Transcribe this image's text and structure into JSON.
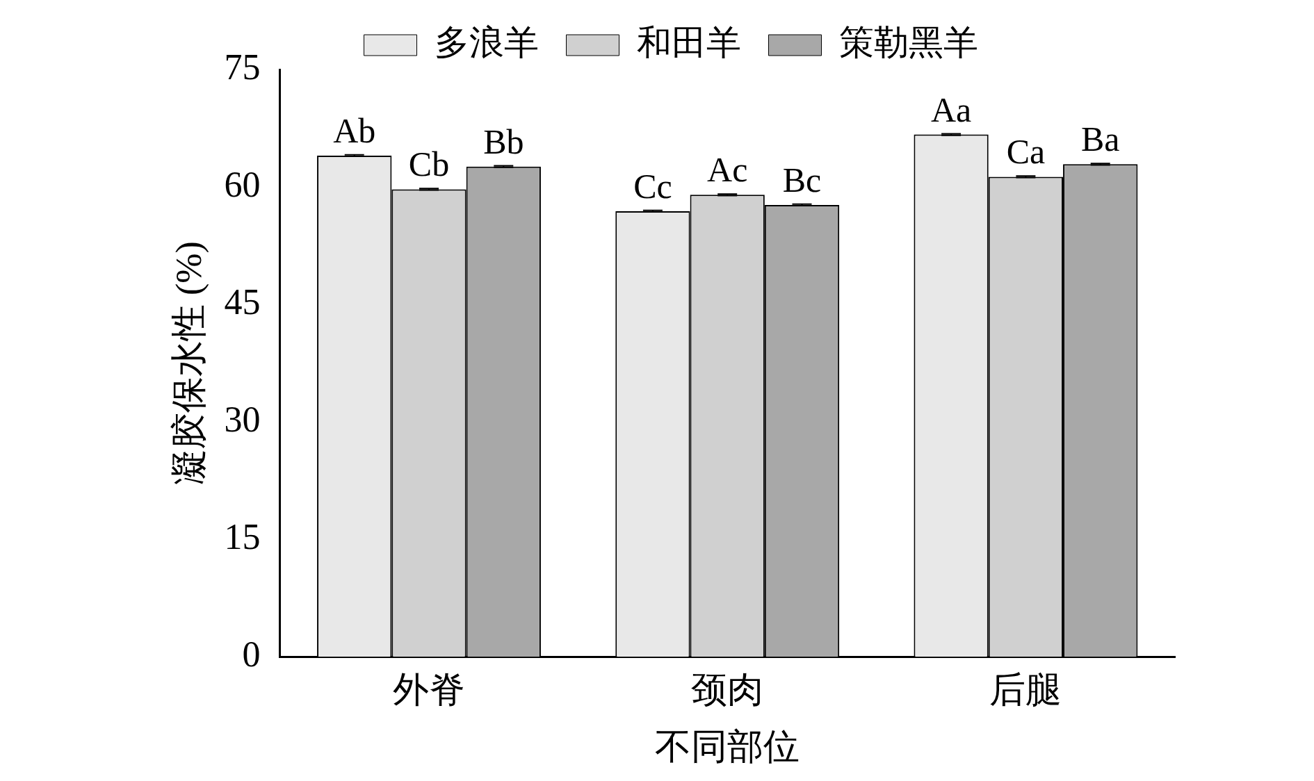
{
  "chart_data": {
    "type": "bar",
    "xlabel": "不同部位",
    "ylabel": "凝胶保水性 (%)",
    "categories": [
      "外脊",
      "颈肉",
      "后腿"
    ],
    "series": [
      {
        "name": "多浪羊",
        "color": "#e8e8e8",
        "values": [
          64.0,
          56.9,
          66.7
        ],
        "errors": [
          0.1,
          0.1,
          0.1
        ],
        "value_labels": [
          "Ab",
          "Cc",
          "Aa"
        ]
      },
      {
        "name": "和田羊",
        "color": "#d0d0d0",
        "values": [
          59.7,
          59.0,
          61.3
        ],
        "errors": [
          0.1,
          0.1,
          0.1
        ],
        "value_labels": [
          "Cb",
          "Ac",
          "Ca"
        ]
      },
      {
        "name": "策勒黑羊",
        "color": "#a8a8a8",
        "values": [
          62.6,
          57.7,
          62.9
        ],
        "errors": [
          0.1,
          0.1,
          0.1
        ],
        "value_labels": [
          "Bb",
          "Bc",
          "Ba"
        ]
      }
    ],
    "ylim": [
      0,
      75
    ],
    "yticks": [
      0,
      15,
      30,
      45,
      60,
      75
    ],
    "grid": false,
    "legend": "top"
  }
}
